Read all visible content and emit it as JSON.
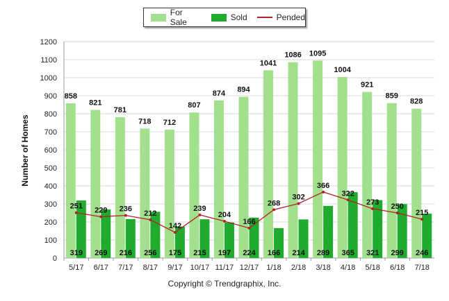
{
  "legend": {
    "for_sale": "For Sale",
    "sold": "Sold",
    "pended": "Pended"
  },
  "colors": {
    "for_sale": "#a3e08d",
    "sold": "#1fab2d",
    "pended": "#b22222"
  },
  "footer": "Copyright © Trendgraphix, Inc.",
  "chart_data": {
    "type": "bar",
    "title": "",
    "xlabel": "",
    "ylabel": "Number of Homes",
    "ylim": [
      0,
      1200
    ],
    "yticks": [
      0,
      100,
      200,
      300,
      400,
      500,
      600,
      700,
      800,
      900,
      1000,
      1100,
      1200
    ],
    "grid": true,
    "legend_position": "top-center",
    "categories": [
      "5/17",
      "6/17",
      "7/17",
      "8/17",
      "9/17",
      "10/17",
      "11/17",
      "12/17",
      "1/18",
      "2/18",
      "3/18",
      "4/18",
      "5/18",
      "6/18",
      "7/18"
    ],
    "series": [
      {
        "name": "For Sale",
        "type": "bar",
        "values": [
          858,
          821,
          781,
          718,
          712,
          807,
          874,
          894,
          1041,
          1086,
          1095,
          1004,
          921,
          859,
          828
        ]
      },
      {
        "name": "Sold",
        "type": "bar",
        "values": [
          319,
          269,
          216,
          256,
          175,
          215,
          197,
          224,
          166,
          214,
          289,
          365,
          321,
          299,
          246
        ]
      },
      {
        "name": "Pended",
        "type": "line",
        "values": [
          251,
          229,
          236,
          212,
          142,
          239,
          204,
          166,
          268,
          302,
          366,
          322,
          273,
          250,
          215
        ]
      }
    ]
  }
}
